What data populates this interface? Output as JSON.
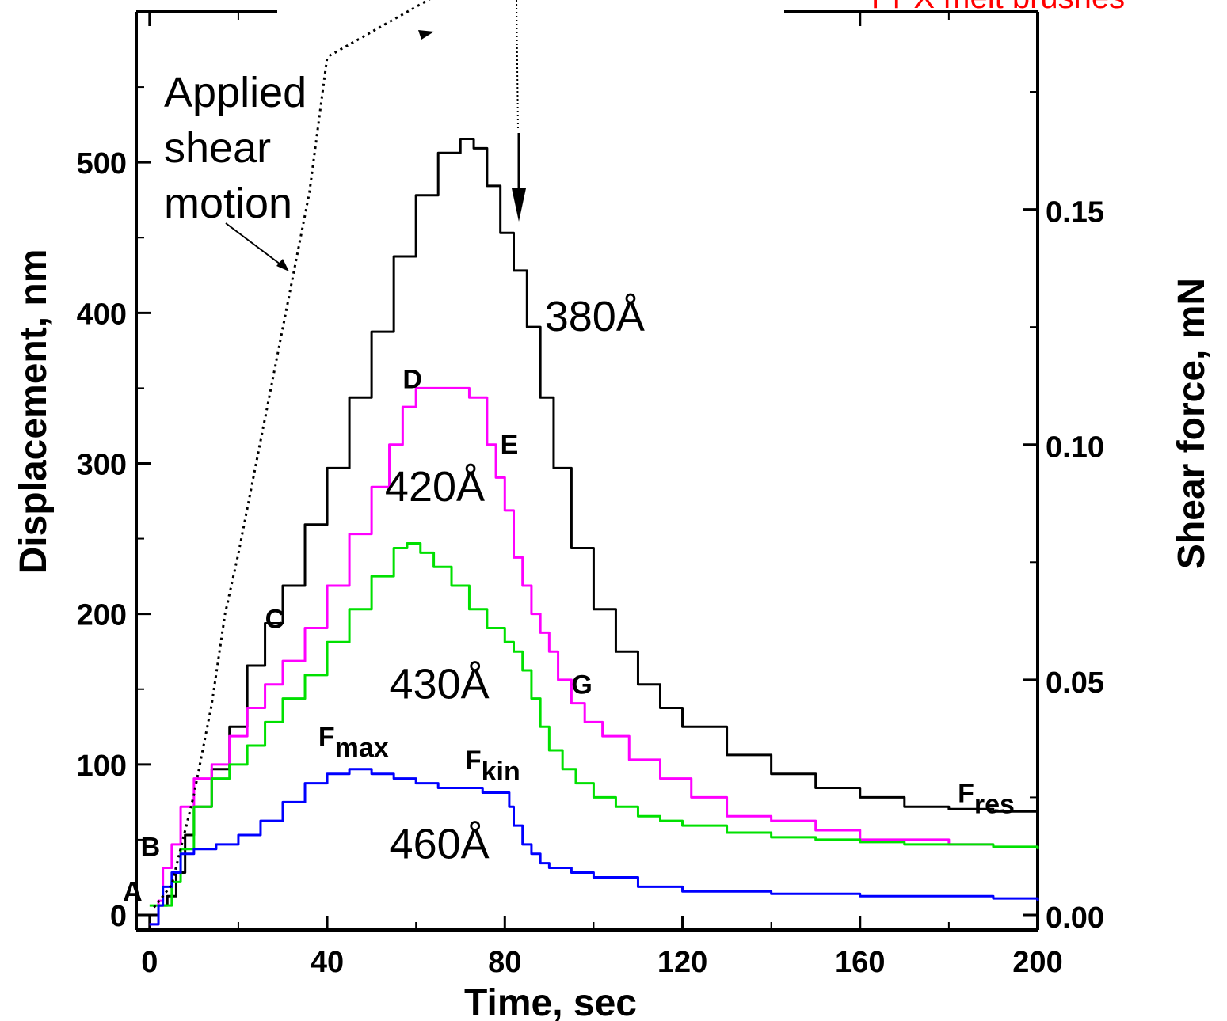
{
  "chart_data": {
    "type": "line",
    "header_fragment": "PPX melt brushes",
    "xlabel": "Time, sec",
    "ylabel": "Displacement, nm",
    "y2label": "Shear force, mN",
    "xlim": [
      -3,
      200
    ],
    "ylim": [
      -10,
      600
    ],
    "y2lim": [
      -0.0032,
      0.192
    ],
    "x_ticks": [
      0,
      40,
      80,
      120,
      160,
      200
    ],
    "y_ticks": [
      0,
      100,
      200,
      300,
      400,
      500
    ],
    "y2_ticks": [
      0.0,
      0.05,
      0.1,
      0.15
    ],
    "x_tick_labels": [
      "0",
      "40",
      "80",
      "120",
      "160",
      "200"
    ],
    "y_tick_labels": [
      "0",
      "100",
      "200",
      "300",
      "400",
      "500"
    ],
    "y2_tick_labels": [
      "0.00",
      "0.05",
      "0.10",
      "0.15"
    ],
    "colors": {
      "s380": "#000000",
      "s420": "#ff00ff",
      "s430": "#00e000",
      "s460": "#0000ff",
      "header": "#ff0000"
    },
    "series": [
      {
        "name": "380Å",
        "axis": "y2",
        "color": "#000000",
        "x": [
          0,
          2,
          4,
          6,
          8,
          10,
          14,
          18,
          22,
          26,
          30,
          35,
          40,
          45,
          50,
          55,
          60,
          65,
          70,
          73,
          76,
          79,
          82,
          85,
          88,
          91,
          95,
          100,
          105,
          110,
          115,
          120,
          130,
          140,
          150,
          160,
          170,
          180,
          190,
          200
        ],
        "y": [
          0.0,
          0.002,
          0.004,
          0.009,
          0.017,
          0.023,
          0.031,
          0.04,
          0.053,
          0.062,
          0.07,
          0.083,
          0.095,
          0.11,
          0.124,
          0.14,
          0.153,
          0.162,
          0.165,
          0.163,
          0.155,
          0.145,
          0.137,
          0.125,
          0.11,
          0.095,
          0.078,
          0.065,
          0.056,
          0.049,
          0.044,
          0.04,
          0.034,
          0.03,
          0.027,
          0.025,
          0.023,
          0.0225,
          0.022,
          0.021
        ]
      },
      {
        "name": "420Å",
        "axis": "y2",
        "color": "#ff00ff",
        "x": [
          0,
          2,
          3,
          5,
          7,
          10,
          14,
          18,
          22,
          26,
          30,
          35,
          40,
          45,
          50,
          54,
          57,
          60,
          64,
          68,
          72,
          76,
          78,
          80,
          82,
          84,
          86,
          88,
          90,
          92,
          95,
          98,
          102,
          108,
          115,
          122,
          130,
          140,
          150,
          160,
          170,
          180,
          190
        ],
        "y": [
          -0.002,
          0.003,
          0.01,
          0.015,
          0.023,
          0.029,
          0.032,
          0.038,
          0.044,
          0.049,
          0.054,
          0.061,
          0.07,
          0.081,
          0.091,
          0.1,
          0.108,
          0.112,
          0.112,
          0.112,
          0.11,
          0.1,
          0.093,
          0.086,
          0.076,
          0.07,
          0.064,
          0.06,
          0.056,
          0.05,
          0.045,
          0.041,
          0.038,
          0.033,
          0.029,
          0.025,
          0.021,
          0.02,
          0.018,
          0.016,
          0.016,
          0.015,
          0.015
        ]
      },
      {
        "name": "430Å",
        "axis": "y2",
        "color": "#00e000",
        "x": [
          0,
          3,
          5,
          7,
          10,
          14,
          18,
          22,
          26,
          30,
          35,
          40,
          45,
          50,
          55,
          58,
          61,
          64,
          68,
          72,
          76,
          80,
          82,
          84,
          86,
          88,
          90,
          93,
          96,
          100,
          105,
          110,
          115,
          120,
          130,
          140,
          150,
          160,
          170,
          180,
          190,
          200
        ],
        "y": [
          0.002,
          0.002,
          0.007,
          0.014,
          0.023,
          0.029,
          0.032,
          0.036,
          0.041,
          0.046,
          0.051,
          0.058,
          0.065,
          0.072,
          0.078,
          0.079,
          0.077,
          0.074,
          0.07,
          0.065,
          0.061,
          0.058,
          0.056,
          0.052,
          0.046,
          0.04,
          0.035,
          0.031,
          0.028,
          0.025,
          0.023,
          0.021,
          0.02,
          0.019,
          0.0175,
          0.0165,
          0.016,
          0.0155,
          0.015,
          0.015,
          0.0145,
          0.014
        ]
      },
      {
        "name": "460Å",
        "axis": "y2",
        "color": "#0000ff",
        "x": [
          0,
          2,
          3,
          5,
          7,
          10,
          15,
          20,
          25,
          30,
          35,
          40,
          45,
          50,
          55,
          60,
          65,
          70,
          75,
          80,
          81,
          82,
          84,
          86,
          88,
          90,
          95,
          100,
          110,
          120,
          140,
          160,
          180,
          190,
          200
        ],
        "y": [
          -0.002,
          0.002,
          0.006,
          0.009,
          0.013,
          0.014,
          0.015,
          0.017,
          0.02,
          0.024,
          0.028,
          0.03,
          0.031,
          0.03,
          0.029,
          0.028,
          0.027,
          0.027,
          0.026,
          0.026,
          0.023,
          0.019,
          0.015,
          0.013,
          0.011,
          0.01,
          0.009,
          0.008,
          0.006,
          0.005,
          0.0045,
          0.004,
          0.004,
          0.0035,
          0.003
        ]
      },
      {
        "name": "Applied shear motion",
        "axis": "y",
        "color": "#000000",
        "x": [
          1,
          5,
          10,
          14,
          17,
          20,
          24,
          28,
          32,
          36,
          40,
          46,
          52,
          58,
          64,
          70,
          76,
          80,
          86,
          92
        ],
        "y": [
          5,
          20,
          80,
          140,
          200,
          240,
          300,
          360,
          420,
          480,
          570,
          580,
          590,
          600,
          610,
          620,
          630,
          640,
          650,
          660
        ]
      }
    ],
    "annotations": {
      "series_labels": [
        {
          "text": "380Å",
          "x": 89,
          "y": 0.1242
        },
        {
          "text": "420Å",
          "x": 53,
          "y": 0.088
        },
        {
          "text": "430Å",
          "x": 54,
          "y": 0.046
        },
        {
          "text": "460Å",
          "x": 54,
          "y": 0.012
        }
      ],
      "point_labels": [
        {
          "text": "A",
          "x": -6,
          "y": 0.003
        },
        {
          "text": "B",
          "x": -2,
          "y": 0.0125
        },
        {
          "text": "C",
          "x": 26,
          "y": 0.061
        },
        {
          "text": "D",
          "x": 57,
          "y": 0.112
        },
        {
          "text": "E",
          "x": 79,
          "y": 0.098
        },
        {
          "text": "G",
          "x": 95,
          "y": 0.047
        },
        {
          "text": "F",
          "sub": "max",
          "x": 38,
          "y": 0.036
        },
        {
          "text": "F",
          "sub": "kin",
          "x": 71,
          "y": 0.031
        },
        {
          "text": "F",
          "sub": "res",
          "x": 182,
          "y": 0.024
        }
      ],
      "applied_label": [
        "Applied",
        "shear",
        "motion"
      ]
    }
  }
}
